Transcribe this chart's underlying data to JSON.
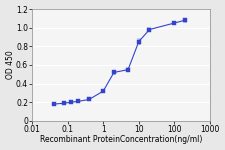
{
  "x": [
    0.04,
    0.08,
    0.12,
    0.2,
    0.4,
    1.0,
    2.0,
    5.0,
    10.0,
    20.0,
    100.0,
    200.0
  ],
  "y": [
    0.18,
    0.19,
    0.2,
    0.21,
    0.23,
    0.32,
    0.52,
    0.55,
    0.85,
    0.98,
    1.05,
    1.08
  ],
  "yerr": [
    0.01,
    0.005,
    0.005,
    0.005,
    0.005,
    0.015,
    0.015,
    0.015,
    0.025,
    0.015,
    0.015,
    0.015
  ],
  "line_color": "#3344cc",
  "marker": "s",
  "marker_size": 2.5,
  "xlabel": "Recombinant ProteinConcentration(ng/ml)",
  "ylabel": "OD 450",
  "xlim": [
    0.01,
    1000
  ],
  "ylim": [
    0,
    1.2
  ],
  "yticks": [
    0,
    0.2,
    0.4,
    0.6,
    0.8,
    1.0,
    1.2
  ],
  "xticks": [
    0.01,
    0.1,
    1,
    10,
    100,
    1000
  ],
  "xtick_labels": [
    "0.01",
    "0.1",
    "1",
    "10",
    "100",
    "1000"
  ],
  "fig_bg_color": "#e8e8e8",
  "plot_bg": "#f5f5f5",
  "axis_fontsize": 5.5,
  "tick_fontsize": 5.5,
  "xlabel_fontsize": 5.5
}
